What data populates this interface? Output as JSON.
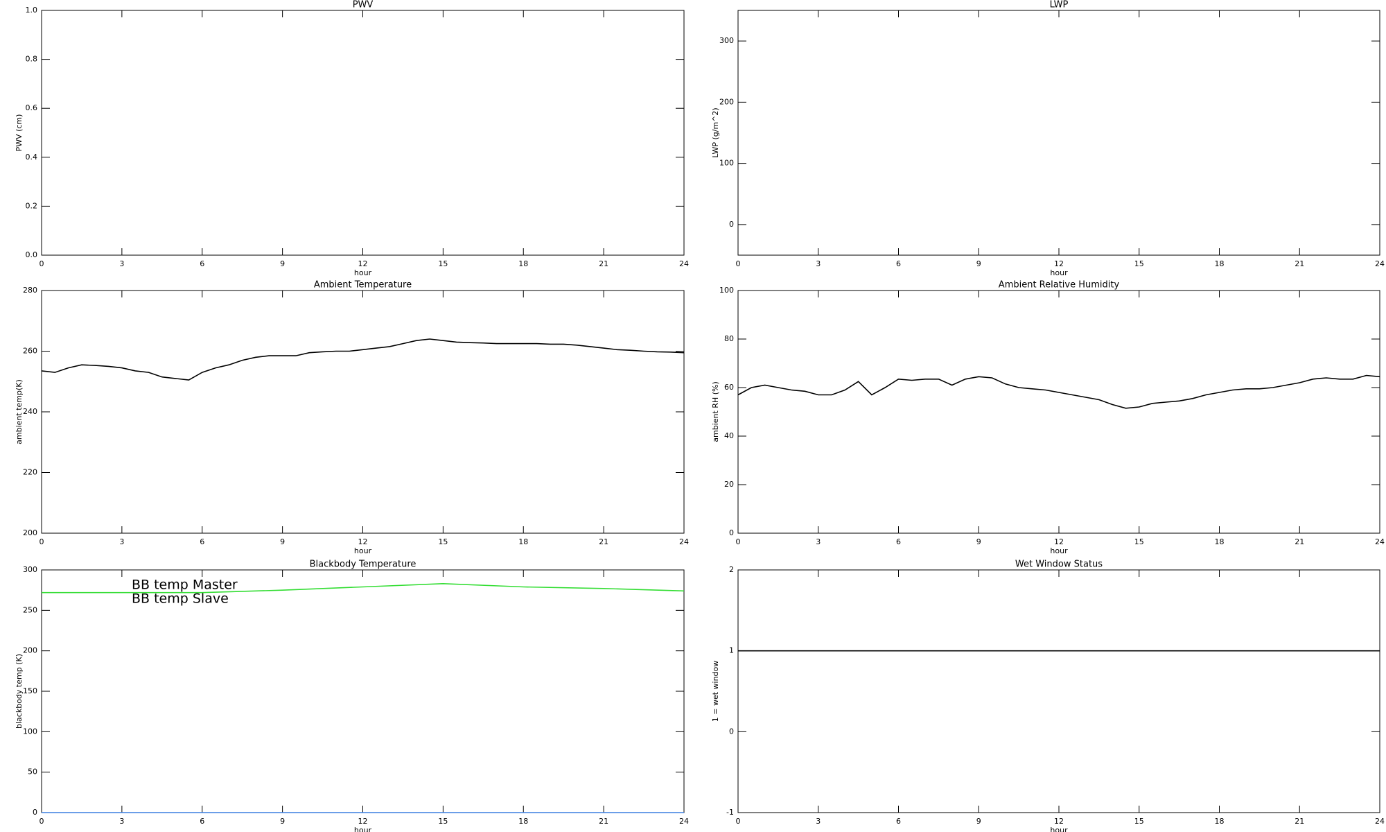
{
  "chart_data": [
    {
      "type": "line",
      "title": "PWV",
      "xlabel": "hour",
      "ylabel": "PWV (cm)",
      "xlim": [
        0,
        24
      ],
      "xticks": [
        0,
        3,
        6,
        9,
        12,
        15,
        18,
        21,
        24
      ],
      "ylim": [
        0,
        1
      ],
      "yticks": [
        {
          "value": 0,
          "label": "0.0"
        },
        0.2,
        0.4,
        0.6,
        0.8,
        {
          "value": 1,
          "label": "1.0"
        }
      ],
      "series": []
    },
    {
      "type": "line",
      "title": "LWP",
      "xlabel": "hour",
      "ylabel": "LWP (g/m^2)",
      "xlim": [
        0,
        24
      ],
      "xticks": [
        0,
        3,
        6,
        9,
        12,
        15,
        18,
        21,
        24
      ],
      "ylim": [
        -50,
        350
      ],
      "yticks": [
        0,
        100,
        200,
        300
      ],
      "series": []
    },
    {
      "type": "line",
      "title": "Ambient Temperature",
      "xlabel": "hour",
      "ylabel": "ambient temp(K)",
      "xlim": [
        0,
        24
      ],
      "xticks": [
        0,
        3,
        6,
        9,
        12,
        15,
        18,
        21,
        24
      ],
      "ylim": [
        200,
        280
      ],
      "yticks": [
        200,
        220,
        240,
        260,
        280
      ],
      "x": [
        0,
        0.5,
        1,
        1.5,
        2,
        2.5,
        3,
        3.5,
        4,
        4.5,
        5,
        5.5,
        6,
        6.5,
        7,
        7.5,
        8,
        8.5,
        9,
        9.5,
        10,
        10.5,
        11,
        11.5,
        12,
        12.5,
        13,
        13.5,
        14,
        14.5,
        15,
        15.5,
        16,
        16.5,
        17,
        17.5,
        18,
        18.5,
        19,
        19.5,
        20,
        20.5,
        21,
        21.5,
        22,
        22.5,
        23,
        23.5,
        24
      ],
      "series": [
        {
          "color": "#000000",
          "values": [
            253.5,
            253,
            254.5,
            255.5,
            255.3,
            255,
            254.5,
            253.5,
            253,
            251.5,
            251,
            250.5,
            253,
            254.5,
            255.5,
            257,
            258,
            258.5,
            258.5,
            258.5,
            259.5,
            259.8,
            260,
            260,
            260.5,
            261,
            261.5,
            262.5,
            263.5,
            264,
            263.5,
            263,
            262.8,
            262.7,
            262.5,
            262.5,
            262.5,
            262.5,
            262.3,
            262.3,
            262,
            261.5,
            261,
            260.5,
            260.3,
            260,
            259.8,
            259.7,
            259.5
          ]
        }
      ]
    },
    {
      "type": "line",
      "title": "Ambient Relative Humidity",
      "xlabel": "hour",
      "ylabel": "ambient RH (%)",
      "xlim": [
        0,
        24
      ],
      "xticks": [
        0,
        3,
        6,
        9,
        12,
        15,
        18,
        21,
        24
      ],
      "ylim": [
        0,
        100
      ],
      "yticks": [
        0,
        20,
        40,
        60,
        80,
        100
      ],
      "x": [
        0,
        0.5,
        1,
        1.5,
        2,
        2.5,
        3,
        3.5,
        4,
        4.5,
        5,
        5.5,
        6,
        6.5,
        7,
        7.5,
        8,
        8.5,
        9,
        9.5,
        10,
        10.5,
        11,
        11.5,
        12,
        12.5,
        13,
        13.5,
        14,
        14.5,
        15,
        15.5,
        16,
        16.5,
        17,
        17.5,
        18,
        18.5,
        19,
        19.5,
        20,
        20.5,
        21,
        21.5,
        22,
        22.5,
        23,
        23.5,
        24
      ],
      "series": [
        {
          "color": "#000000",
          "values": [
            57,
            60,
            61,
            60,
            59,
            58.5,
            57,
            57,
            59,
            62.5,
            57,
            60,
            63.5,
            63,
            63.5,
            63.5,
            61,
            63.5,
            64.5,
            64,
            61.5,
            60,
            59.5,
            59,
            58,
            57,
            56,
            55,
            53,
            51.5,
            52,
            53.5,
            54,
            54.5,
            55.5,
            57,
            58,
            59,
            59.5,
            59.5,
            60,
            61,
            62,
            63.5,
            64,
            63.5,
            63.5,
            65,
            64.5
          ]
        }
      ]
    },
    {
      "type": "line",
      "title": "Blackbody Temperature",
      "xlabel": "hour",
      "ylabel": "blackbody temp (K)",
      "xlim": [
        0,
        24
      ],
      "xticks": [
        0,
        3,
        6,
        9,
        12,
        15,
        18,
        21,
        24
      ],
      "ylim": [
        0,
        300
      ],
      "yticks": [
        0,
        50,
        100,
        150,
        200,
        250,
        300
      ],
      "legend": "upper left",
      "x": [
        0,
        3,
        6,
        9,
        12,
        15,
        18,
        21,
        24
      ],
      "series": [
        {
          "name": "BB temp Master",
          "color": "#3a7fe0",
          "values": [
            0,
            0,
            0,
            0,
            0,
            0,
            0,
            0,
            0
          ]
        },
        {
          "name": "BB temp Slave",
          "color": "#33dd33",
          "values": [
            272,
            272,
            272,
            275,
            279,
            283,
            279,
            277,
            274
          ]
        }
      ]
    },
    {
      "type": "line",
      "title": "Wet Window Status",
      "xlabel": "hour",
      "ylabel": "1 = wet window",
      "xlim": [
        0,
        24
      ],
      "xticks": [
        0,
        3,
        6,
        9,
        12,
        15,
        18,
        21,
        24
      ],
      "ylim": [
        -1,
        2
      ],
      "yticks": [
        -1,
        0,
        1,
        2
      ],
      "x": [
        0,
        24
      ],
      "series": [
        {
          "color": "#000000",
          "values": [
            1,
            1
          ]
        }
      ]
    }
  ]
}
